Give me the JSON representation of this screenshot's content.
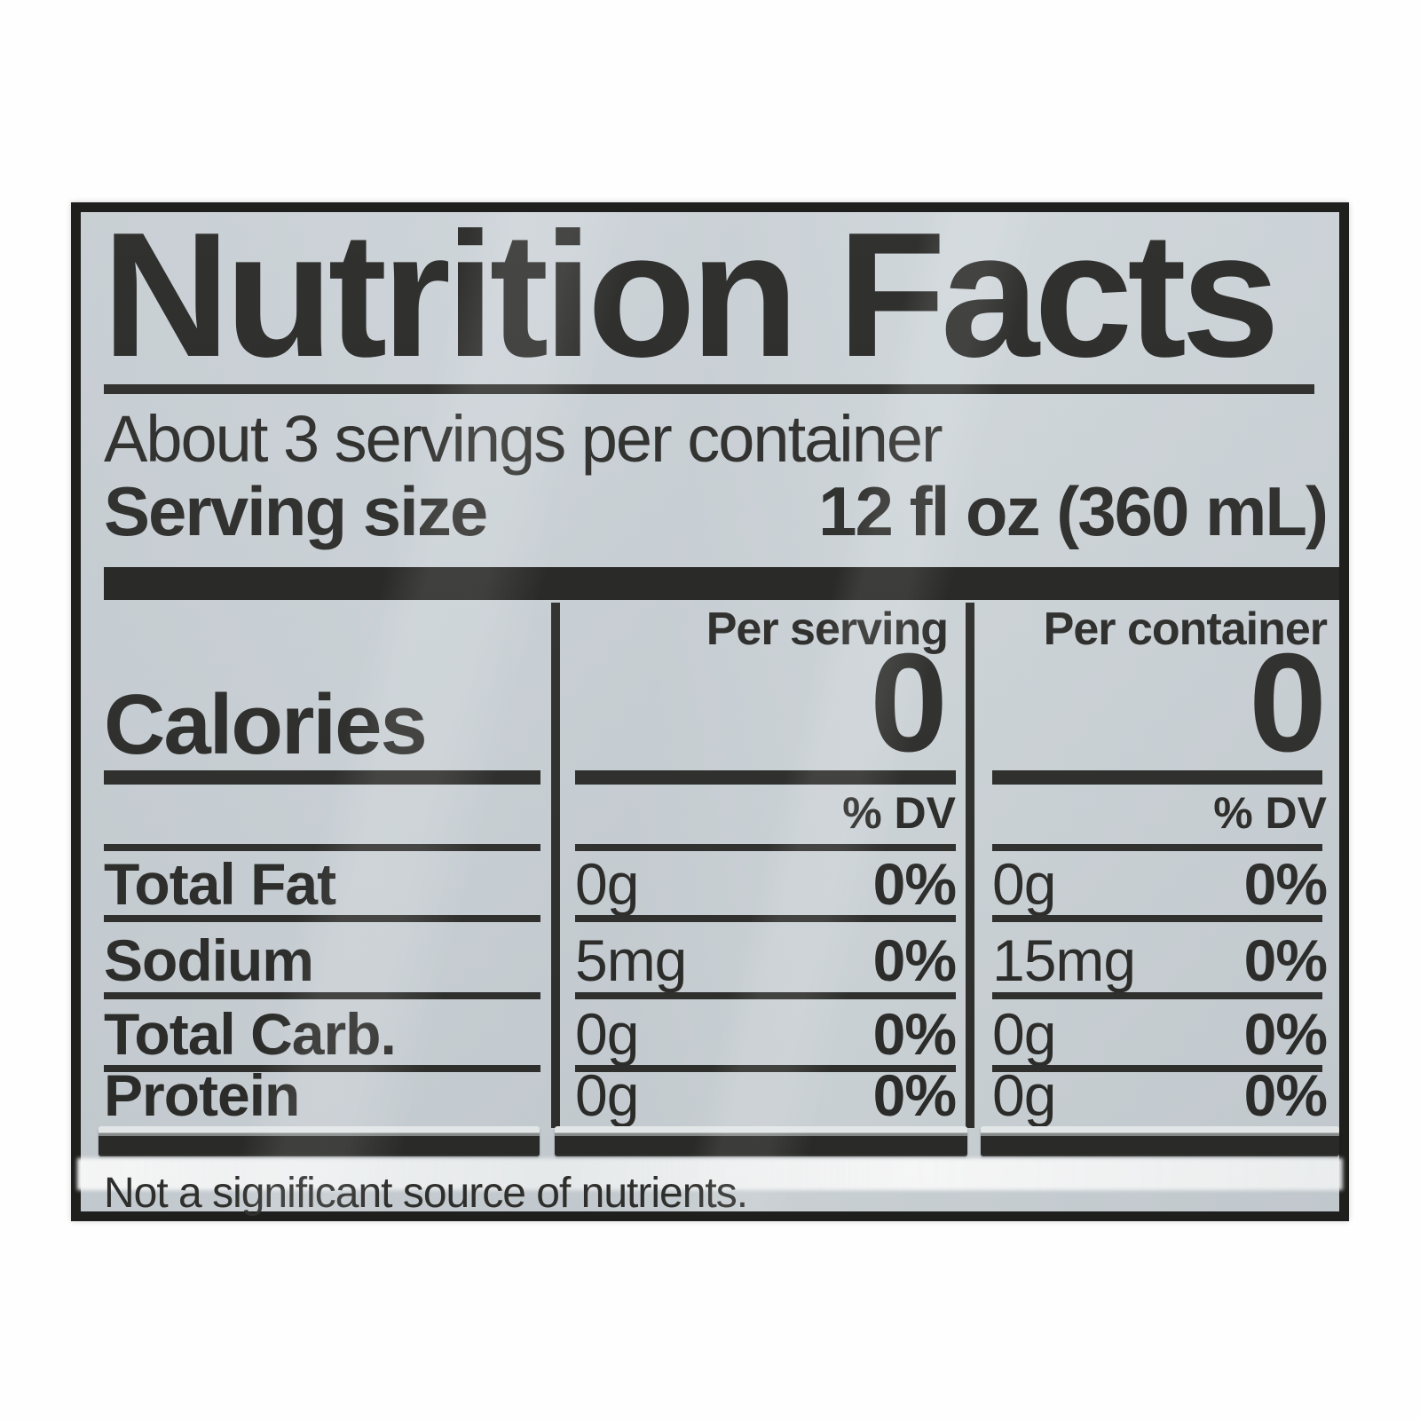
{
  "label": {
    "title": "Nutrition Facts",
    "servings_per_container": "About 3 servings per container",
    "serving_size": {
      "label": "Serving size",
      "value": "12 fl oz (360 mL)"
    },
    "columns": {
      "per_serving": "Per serving",
      "per_container": "Per container"
    },
    "calories": {
      "label": "Calories",
      "per_serving": "0",
      "per_container": "0"
    },
    "dv_header": "% DV",
    "rows": [
      {
        "name": "Total Fat",
        "serving_amount": "0g",
        "serving_dv": "0%",
        "container_amount": "0g",
        "container_dv": "0%"
      },
      {
        "name": "Sodium",
        "serving_amount": "5mg",
        "serving_dv": "0%",
        "container_amount": "15mg",
        "container_dv": "0%"
      },
      {
        "name": "Total Carb.",
        "serving_amount": "0g",
        "serving_dv": "0%",
        "container_amount": "0g",
        "container_dv": "0%"
      },
      {
        "name": "Protein",
        "serving_amount": "0g",
        "serving_dv": "0%",
        "container_amount": "0g",
        "container_dv": "0%"
      }
    ],
    "footnote": "Not a significant source of nutrients.",
    "colors": {
      "label_background": "#cad1d6",
      "ink": "#2b2b29",
      "border": "#1f1f1e",
      "glare": "#f5f7f7",
      "page_background": "#ffffff"
    }
  }
}
